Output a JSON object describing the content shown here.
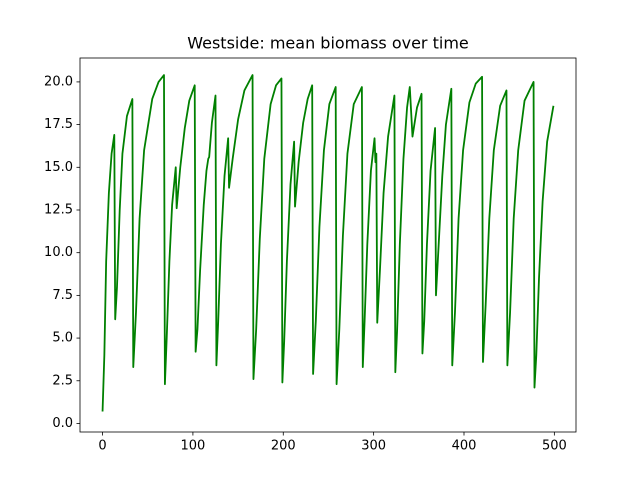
{
  "chart_data": {
    "type": "line",
    "title": "Westside: mean biomass over time",
    "series": [
      {
        "color": "#008000",
        "x": [
          0,
          2,
          4,
          7,
          10,
          13,
          14,
          16,
          19,
          22,
          27,
          33,
          34,
          37,
          41,
          46,
          55,
          62,
          68,
          69,
          71,
          74,
          77,
          81,
          82,
          86,
          91,
          96,
          102,
          103,
          105,
          108,
          112,
          115,
          117,
          118,
          121,
          125,
          126,
          128,
          131,
          135,
          139,
          140,
          144,
          150,
          157,
          166,
          167,
          170,
          174,
          179,
          186,
          192,
          198,
          199,
          201,
          204,
          208,
          212,
          213,
          217,
          222,
          227,
          232,
          233,
          236,
          240,
          245,
          251,
          258,
          259,
          262,
          266,
          271,
          278,
          287,
          288,
          290,
          293,
          297,
          301,
          302,
          303,
          304,
          307,
          311,
          316,
          323,
          324,
          326,
          329,
          333,
          337,
          340,
          343,
          348,
          353,
          354,
          356,
          359,
          363,
          368,
          369,
          372,
          376,
          380,
          386,
          387,
          390,
          394,
          399,
          406,
          413,
          420,
          421,
          424,
          428,
          433,
          440,
          447,
          448,
          451,
          455,
          460,
          467,
          477,
          478,
          480,
          483,
          487,
          492,
          499
        ],
        "values": [
          0.7,
          4.0,
          9.5,
          13.5,
          15.8,
          16.9,
          6.1,
          8.0,
          12.5,
          15.8,
          18.0,
          19.0,
          3.3,
          6.5,
          12.0,
          16.0,
          19.0,
          20.0,
          20.4,
          2.3,
          5.0,
          9.5,
          12.8,
          15.0,
          12.6,
          15.0,
          17.3,
          18.9,
          19.8,
          4.2,
          5.5,
          9.0,
          12.8,
          14.8,
          15.5,
          15.6,
          17.6,
          19.2,
          3.4,
          6.0,
          10.5,
          14.5,
          16.7,
          13.8,
          15.5,
          17.8,
          19.5,
          20.4,
          2.6,
          5.5,
          10.8,
          15.5,
          18.7,
          19.8,
          20.2,
          2.4,
          4.8,
          9.5,
          14.0,
          16.5,
          12.7,
          15.3,
          17.6,
          19.0,
          19.8,
          2.9,
          6.0,
          11.5,
          16.0,
          18.7,
          19.7,
          2.3,
          5.5,
          11.0,
          15.8,
          18.7,
          19.7,
          3.3,
          6.0,
          10.5,
          14.8,
          16.7,
          15.3,
          15.8,
          5.9,
          9.0,
          13.5,
          16.8,
          19.2,
          3.0,
          5.5,
          10.5,
          15.5,
          18.5,
          19.7,
          16.8,
          18.5,
          19.3,
          4.1,
          6.0,
          10.5,
          14.8,
          17.3,
          7.5,
          10.5,
          14.5,
          17.5,
          19.6,
          3.4,
          6.5,
          12.0,
          16.0,
          18.8,
          19.9,
          20.3,
          3.6,
          7.0,
          12.0,
          16.0,
          18.6,
          19.5,
          3.4,
          6.5,
          12.0,
          16.0,
          18.9,
          20.0,
          2.1,
          4.0,
          8.5,
          13.0,
          16.5,
          18.6
        ]
      }
    ],
    "xlim": [
      -24.95,
      523.95
    ],
    "xticks": [
      0,
      100,
      200,
      300,
      400,
      500
    ],
    "ylim": [
      -0.5,
      21.4
    ],
    "yticks": [
      {
        "value": 0,
        "label": "0.0"
      },
      2.5,
      {
        "value": 5,
        "label": "5.0"
      },
      7.5,
      {
        "value": 10,
        "label": "10.0"
      },
      12.5,
      {
        "value": 15,
        "label": "15.0"
      },
      17.5,
      {
        "value": 20,
        "label": "20.0"
      }
    ],
    "grid": false
  }
}
